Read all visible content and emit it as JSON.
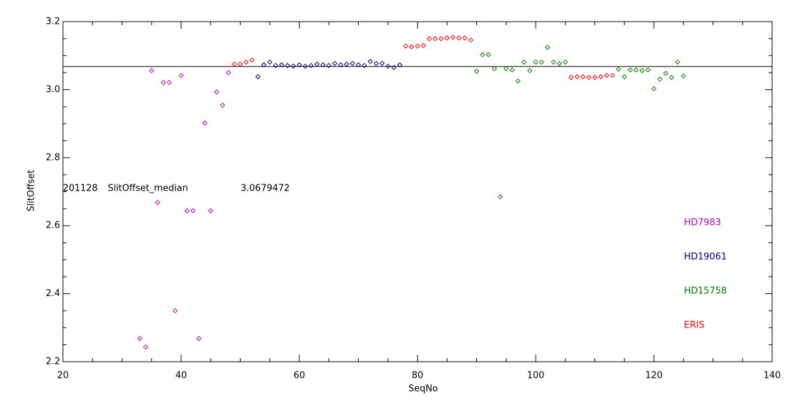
{
  "chart_data": {
    "type": "scatter",
    "x_label": "SeqNo",
    "y_label": "SlitOffset",
    "xlim": [
      20,
      140
    ],
    "xticks": [
      20,
      40,
      60,
      80,
      100,
      120,
      140
    ],
    "ylim": [
      2.2,
      3.2
    ],
    "yticks": [
      2.2,
      2.4,
      2.6,
      2.8,
      {
        "value": 3,
        "label": "3.0"
      },
      3.2
    ],
    "reference_line": {
      "date": "201128",
      "label": "SlitOffset_median",
      "value": 3.0679472,
      "color": "#000000"
    },
    "series": [
      {
        "name": "HD7983",
        "color": "#c000c0",
        "x": [
          33,
          34,
          35,
          36,
          37,
          38,
          39,
          40,
          41,
          42,
          43,
          44,
          45,
          46,
          47,
          48
        ],
        "values": [
          2.268,
          2.243,
          3.056,
          2.668,
          3.021,
          3.021,
          2.35,
          3.042,
          2.644,
          2.644,
          2.268,
          2.902,
          2.644,
          2.993,
          2.954,
          3.05
        ]
      },
      {
        "name": "HD19061",
        "color": "#000080",
        "x": [
          53,
          54,
          55,
          56,
          57,
          58,
          59,
          60,
          61,
          62,
          63,
          64,
          65,
          66,
          67,
          68,
          69,
          70,
          71,
          72,
          73,
          74,
          75,
          76,
          77
        ],
        "values": [
          3.038,
          3.073,
          3.081,
          3.071,
          3.073,
          3.071,
          3.069,
          3.073,
          3.069,
          3.071,
          3.075,
          3.073,
          3.071,
          3.077,
          3.073,
          3.075,
          3.077,
          3.073,
          3.071,
          3.083,
          3.077,
          3.077,
          3.069,
          3.065,
          3.073
        ]
      },
      {
        "name": "HD15758",
        "color": "#008000",
        "x": [
          90,
          91,
          92,
          93,
          94,
          95,
          96,
          97,
          98,
          99,
          100,
          101,
          102,
          103,
          104,
          105,
          114,
          115,
          116,
          117,
          118,
          119,
          120,
          121,
          122,
          123,
          124,
          125
        ],
        "values": [
          3.054,
          3.103,
          3.103,
          3.062,
          2.685,
          3.062,
          3.058,
          3.025,
          3.081,
          3.056,
          3.081,
          3.081,
          3.124,
          3.081,
          3.077,
          3.081,
          3.06,
          3.038,
          3.058,
          3.058,
          3.056,
          3.058,
          3.003,
          3.031,
          3.048,
          3.036,
          3.081,
          3.04
        ]
      },
      {
        "name": "ERIS",
        "color": "#ff0000",
        "x": [
          49,
          50,
          51,
          52,
          78,
          79,
          80,
          81,
          82,
          83,
          84,
          85,
          86,
          87,
          88,
          89,
          106,
          107,
          108,
          109,
          110,
          111,
          112,
          113
        ],
        "values": [
          3.075,
          3.075,
          3.081,
          3.087,
          3.128,
          3.126,
          3.128,
          3.13,
          3.15,
          3.15,
          3.15,
          3.152,
          3.154,
          3.152,
          3.152,
          3.146,
          3.036,
          3.038,
          3.038,
          3.036,
          3.036,
          3.038,
          3.042,
          3.042
        ]
      }
    ]
  }
}
